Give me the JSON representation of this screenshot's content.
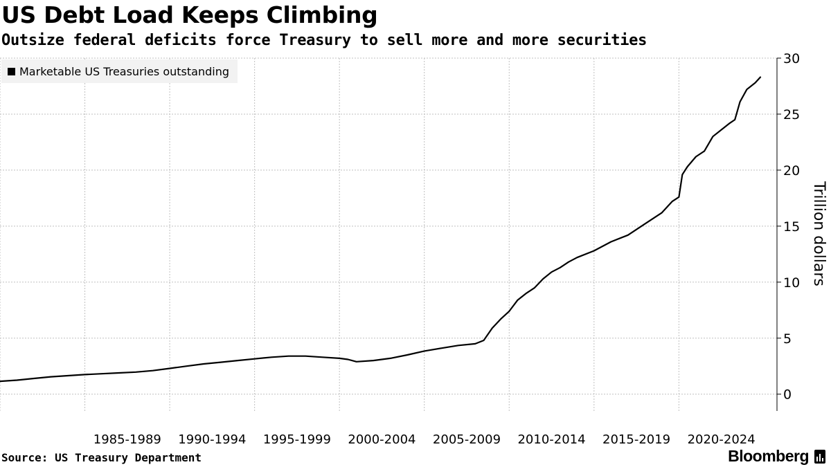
{
  "chart_data": {
    "type": "line",
    "title": "US Debt Load Keeps Climbing",
    "subtitle": "Outsize federal deficits force Treasury to sell more and more securities",
    "ylabel": "Trillion dollars",
    "xlabel": "",
    "ylim": [
      -1.5,
      30
    ],
    "xlim": [
      1980.0,
      2024.8
    ],
    "y_ticks": [
      0,
      5,
      10,
      15,
      20,
      25,
      30
    ],
    "x_tick_labels": [
      "1985-1989",
      "1990-1994",
      "1995-1999",
      "2000-2004",
      "2005-2009",
      "2010-2014",
      "2015-2019",
      "2020-2024"
    ],
    "x_tick_positions": [
      1985,
      1990,
      1995,
      2000,
      2005,
      2010,
      2015,
      2020
    ],
    "x_gridlines": [
      1980,
      1985,
      1990,
      1995,
      2000,
      2005,
      2010,
      2015,
      2020
    ],
    "series": [
      {
        "name": "Marketable US Treasuries outstanding",
        "color": "#000000",
        "points": [
          [
            1980.0,
            1.15
          ],
          [
            1981.0,
            1.25
          ],
          [
            1982.0,
            1.4
          ],
          [
            1983.0,
            1.55
          ],
          [
            1984.0,
            1.65
          ],
          [
            1985.0,
            1.75
          ],
          [
            1986.0,
            1.82
          ],
          [
            1987.0,
            1.9
          ],
          [
            1988.0,
            1.97
          ],
          [
            1989.0,
            2.1
          ],
          [
            1990.0,
            2.3
          ],
          [
            1991.0,
            2.5
          ],
          [
            1992.0,
            2.7
          ],
          [
            1993.0,
            2.85
          ],
          [
            1994.0,
            3.0
          ],
          [
            1995.0,
            3.15
          ],
          [
            1996.0,
            3.3
          ],
          [
            1997.0,
            3.4
          ],
          [
            1998.0,
            3.4
          ],
          [
            1999.0,
            3.3
          ],
          [
            2000.0,
            3.2
          ],
          [
            2000.5,
            3.1
          ],
          [
            2001.0,
            2.9
          ],
          [
            2002.0,
            3.0
          ],
          [
            2003.0,
            3.2
          ],
          [
            2004.0,
            3.5
          ],
          [
            2005.0,
            3.85
          ],
          [
            2006.0,
            4.1
          ],
          [
            2007.0,
            4.35
          ],
          [
            2008.0,
            4.5
          ],
          [
            2008.5,
            4.8
          ],
          [
            2009.0,
            5.9
          ],
          [
            2009.5,
            6.7
          ],
          [
            2010.0,
            7.4
          ],
          [
            2010.5,
            8.4
          ],
          [
            2011.0,
            9.0
          ],
          [
            2011.5,
            9.5
          ],
          [
            2012.0,
            10.3
          ],
          [
            2012.5,
            10.9
          ],
          [
            2013.0,
            11.3
          ],
          [
            2013.5,
            11.8
          ],
          [
            2014.0,
            12.2
          ],
          [
            2015.0,
            12.8
          ],
          [
            2016.0,
            13.6
          ],
          [
            2017.0,
            14.2
          ],
          [
            2018.0,
            15.2
          ],
          [
            2019.0,
            16.2
          ],
          [
            2019.6,
            17.2
          ],
          [
            2020.0,
            17.6
          ],
          [
            2020.2,
            19.6
          ],
          [
            2020.5,
            20.3
          ],
          [
            2021.0,
            21.2
          ],
          [
            2021.5,
            21.7
          ],
          [
            2022.0,
            23.0
          ],
          [
            2022.5,
            23.6
          ],
          [
            2023.0,
            24.2
          ],
          [
            2023.3,
            24.5
          ],
          [
            2023.6,
            26.1
          ],
          [
            2024.0,
            27.2
          ],
          [
            2024.5,
            27.8
          ],
          [
            2024.8,
            28.3
          ]
        ]
      }
    ],
    "legend_position": "top-left",
    "grid": true
  },
  "footer": {
    "source": "Source: US Treasury Department",
    "brand": "Bloomberg"
  },
  "colors": {
    "line": "#000000",
    "grid": "#bfbfbf",
    "legend_bg": "#f2f2f2"
  }
}
